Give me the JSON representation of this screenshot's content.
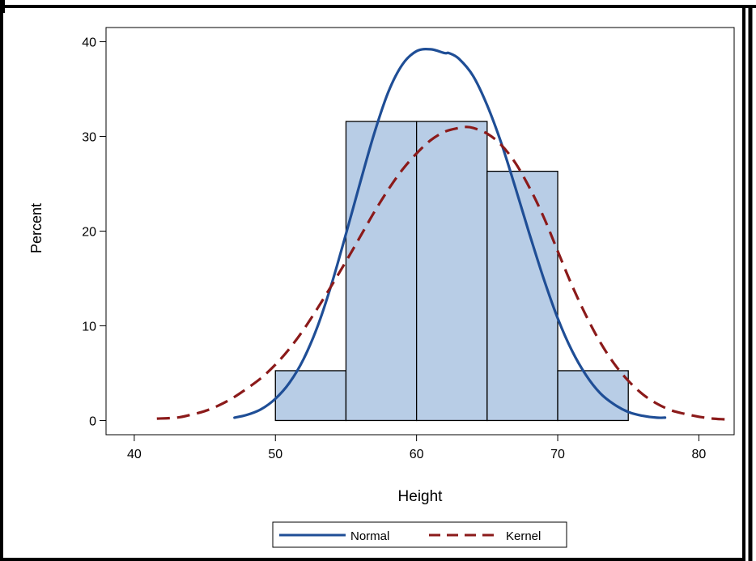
{
  "chart_data": {
    "type": "bar",
    "subtype": "histogram-with-density-curves",
    "xlabel": "Height",
    "ylabel": "Percent",
    "xlim": [
      38,
      82.5
    ],
    "ylim": [
      -1.5,
      41.5
    ],
    "x_ticks": [
      40,
      50,
      60,
      70,
      80
    ],
    "y_ticks": [
      0,
      10,
      20,
      30,
      40
    ],
    "grid": false,
    "bins": [
      {
        "start": 50,
        "end": 55,
        "value": 5.26
      },
      {
        "start": 55,
        "end": 60,
        "value": 31.58
      },
      {
        "start": 60,
        "end": 65,
        "value": 31.58
      },
      {
        "start": 65,
        "end": 70,
        "value": 26.32
      },
      {
        "start": 70,
        "end": 75,
        "value": 5.26
      }
    ],
    "series": [
      {
        "name": "Normal",
        "color": "#1f4e96",
        "style": "solid",
        "x": [
          47.1,
          48,
          49,
          50,
          51,
          52,
          53,
          54,
          55,
          56,
          57,
          58,
          59,
          60,
          61,
          62,
          62.3,
          63,
          64,
          65,
          66,
          67,
          68,
          69,
          70,
          71,
          72,
          73,
          74,
          75,
          76,
          77,
          77.6
        ],
        "values": [
          0.3,
          0.6,
          1.2,
          2.3,
          4.0,
          6.5,
          10.0,
          14.5,
          19.7,
          25.1,
          30.3,
          34.7,
          37.6,
          39.0,
          39.2,
          38.8,
          38.8,
          38.2,
          36.4,
          33.3,
          29.3,
          24.6,
          19.7,
          15.0,
          10.8,
          7.4,
          4.8,
          2.9,
          1.7,
          0.9,
          0.5,
          0.3,
          0.3
        ]
      },
      {
        "name": "Kernel",
        "color": "#8b1a1a",
        "style": "dashed",
        "x": [
          41.6,
          43,
          44,
          45,
          46,
          47,
          48,
          49,
          50,
          51,
          52,
          53,
          54,
          55,
          56,
          57,
          58,
          59,
          60,
          61,
          62,
          63,
          63.5,
          64,
          65,
          66,
          67,
          68,
          69,
          70,
          71,
          72,
          73,
          74,
          75,
          76,
          77,
          78,
          79,
          80,
          81,
          82.2
        ],
        "values": [
          0.2,
          0.3,
          0.6,
          1.0,
          1.6,
          2.4,
          3.4,
          4.5,
          5.9,
          7.6,
          9.6,
          11.9,
          14.3,
          16.8,
          19.4,
          22.0,
          24.4,
          26.5,
          28.2,
          29.6,
          30.5,
          30.9,
          31.0,
          30.9,
          30.3,
          29.1,
          27.2,
          24.6,
          21.5,
          17.9,
          14.3,
          11.1,
          8.3,
          6.0,
          4.2,
          2.8,
          1.8,
          1.1,
          0.7,
          0.4,
          0.2,
          0.1
        ]
      }
    ],
    "legend": {
      "position": "bottom-center",
      "entries": [
        "Normal",
        "Kernel"
      ]
    },
    "colors": {
      "bar_fill": "#b8cde6",
      "bar_stroke": "#000000",
      "frame": "#000000"
    }
  }
}
